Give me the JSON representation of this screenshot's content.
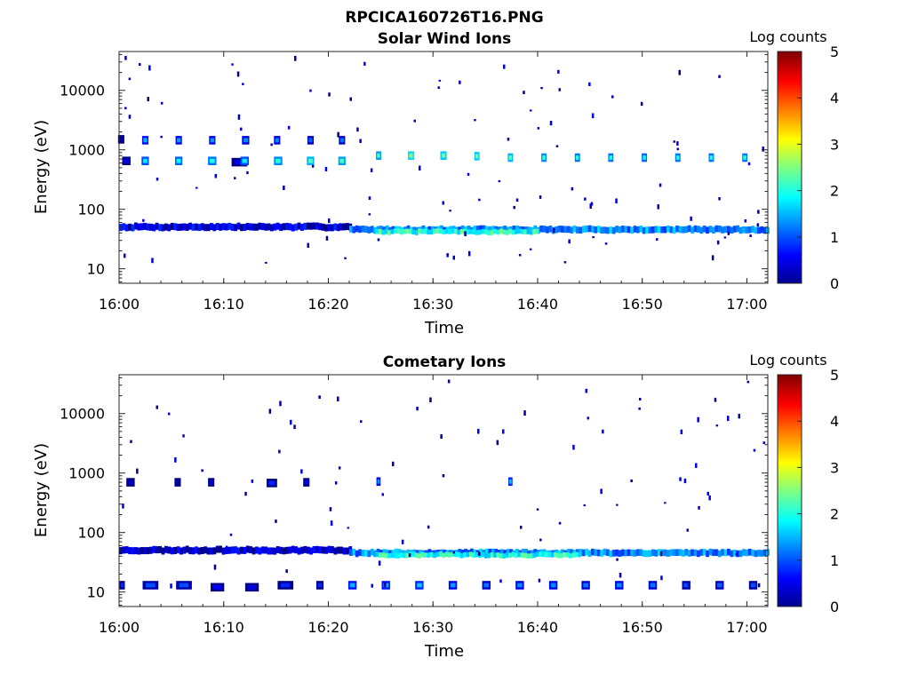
{
  "figure_title": "RPCICA160726T16.PNG",
  "colors": {
    "colormap": [
      "#00008f",
      "#0000ff",
      "#00ffff",
      "#ffff00",
      "#ff0000",
      "#800000"
    ],
    "axis": "#262626"
  },
  "chart_data": [
    {
      "type": "heatmap",
      "title": "Solar Wind Ions",
      "xlabel": "Time",
      "ylabel": "Energy (eV)",
      "x_ticks": [
        "16:00",
        "16:10",
        "16:20",
        "16:30",
        "16:40",
        "16:50",
        "17:00"
      ],
      "x_tick_minutes": [
        0,
        10,
        20,
        30,
        40,
        50,
        60
      ],
      "xlim_minutes": [
        0,
        62
      ],
      "y_ticks": [
        "10",
        "100",
        "1000",
        "10000"
      ],
      "y_tick_values": [
        10,
        100,
        1000,
        10000
      ],
      "ylim": [
        5.7,
        45000
      ],
      "y_scale": "log",
      "colorbar": {
        "label": "Log counts",
        "ticks": [
          "0",
          "1",
          "2",
          "3",
          "4",
          "5"
        ],
        "range": [
          0,
          5
        ]
      },
      "bands": [
        {
          "t0": 0.0,
          "t1": 22.0,
          "e0": 44,
          "e1": 58,
          "level": 0.4
        },
        {
          "t0": 22.0,
          "t1": 62.0,
          "e0": 40,
          "e1": 52,
          "level": 1.3
        },
        {
          "t0": 24.5,
          "t1": 40.0,
          "e0": 38,
          "e1": 46,
          "level": 2.0
        }
      ],
      "blobs": [
        {
          "t": 0.2,
          "e": 1500,
          "w": 0.6,
          "level": 0.3
        },
        {
          "t": 0.7,
          "e": 650,
          "w": 0.8,
          "level": 0.5
        },
        {
          "t": 2.5,
          "e": 650,
          "w": 0.7,
          "level": 1.8
        },
        {
          "t": 2.5,
          "e": 1450,
          "w": 0.6,
          "level": 1.5
        },
        {
          "t": 5.7,
          "e": 650,
          "w": 0.7,
          "level": 1.9
        },
        {
          "t": 5.7,
          "e": 1450,
          "w": 0.6,
          "level": 1.4
        },
        {
          "t": 8.9,
          "e": 650,
          "w": 0.8,
          "level": 2.0
        },
        {
          "t": 8.9,
          "e": 1450,
          "w": 0.6,
          "level": 1.4
        },
        {
          "t": 11.5,
          "e": 620,
          "w": 1.5,
          "level": 0.5
        },
        {
          "t": 12.0,
          "e": 650,
          "w": 0.8,
          "level": 1.8
        },
        {
          "t": 12.1,
          "e": 1450,
          "w": 0.7,
          "level": 1.3
        },
        {
          "t": 15.2,
          "e": 650,
          "w": 0.8,
          "level": 2.1
        },
        {
          "t": 15.1,
          "e": 1450,
          "w": 0.6,
          "level": 1.3
        },
        {
          "t": 18.3,
          "e": 650,
          "w": 0.7,
          "level": 2.3
        },
        {
          "t": 18.3,
          "e": 1450,
          "w": 0.6,
          "level": 1.1
        },
        {
          "t": 21.3,
          "e": 650,
          "w": 0.7,
          "level": 2.2
        },
        {
          "t": 21.3,
          "e": 1450,
          "w": 0.6,
          "level": 1.2
        },
        {
          "t": 24.8,
          "e": 800,
          "w": 0.5,
          "level": 2.2
        },
        {
          "t": 27.9,
          "e": 800,
          "w": 0.6,
          "level": 2.5
        },
        {
          "t": 31.0,
          "e": 800,
          "w": 0.6,
          "level": 2.4
        },
        {
          "t": 34.2,
          "e": 780,
          "w": 0.5,
          "level": 2.4
        },
        {
          "t": 37.4,
          "e": 740,
          "w": 0.5,
          "level": 2.3
        },
        {
          "t": 40.6,
          "e": 740,
          "w": 0.5,
          "level": 2.1
        },
        {
          "t": 43.8,
          "e": 740,
          "w": 0.5,
          "level": 2.0
        },
        {
          "t": 47.0,
          "e": 740,
          "w": 0.5,
          "level": 2.0
        },
        {
          "t": 50.2,
          "e": 740,
          "w": 0.5,
          "level": 1.9
        },
        {
          "t": 53.4,
          "e": 740,
          "w": 0.5,
          "level": 2.0
        },
        {
          "t": 56.6,
          "e": 740,
          "w": 0.5,
          "level": 2.0
        },
        {
          "t": 59.8,
          "e": 740,
          "w": 0.5,
          "level": 2.0
        }
      ],
      "scatter_seed": 7,
      "scatter_count": 110
    },
    {
      "type": "heatmap",
      "title": "Cometary Ions",
      "xlabel": "Time",
      "ylabel": "Energy (eV)",
      "x_ticks": [
        "16:00",
        "16:10",
        "16:20",
        "16:30",
        "16:40",
        "16:50",
        "17:00"
      ],
      "x_tick_minutes": [
        0,
        10,
        20,
        30,
        40,
        50,
        60
      ],
      "xlim_minutes": [
        0,
        62
      ],
      "y_ticks": [
        "10",
        "100",
        "1000",
        "10000"
      ],
      "y_tick_values": [
        10,
        100,
        1000,
        10000
      ],
      "ylim": [
        5.7,
        45000
      ],
      "y_scale": "log",
      "colorbar": {
        "label": "Log counts",
        "ticks": [
          "0",
          "1",
          "2",
          "3",
          "4",
          "5"
        ],
        "range": [
          0,
          5
        ]
      },
      "bands": [
        {
          "t0": 0.0,
          "t1": 22.0,
          "e0": 44,
          "e1": 58,
          "level": 0.3
        },
        {
          "t0": 22.0,
          "t1": 62.0,
          "e0": 40,
          "e1": 52,
          "level": 1.3
        },
        {
          "t0": 24.5,
          "t1": 44.0,
          "e0": 38,
          "e1": 46,
          "level": 2.0
        }
      ],
      "blobs": [
        {
          "t": 0.3,
          "e": 13,
          "w": 0.5,
          "level": 0.8
        },
        {
          "t": 3.0,
          "e": 13,
          "w": 1.5,
          "level": 1.0
        },
        {
          "t": 6.2,
          "e": 13,
          "w": 1.5,
          "level": 1.0
        },
        {
          "t": 9.4,
          "e": 12,
          "w": 1.3,
          "level": 0.6
        },
        {
          "t": 12.7,
          "e": 12,
          "w": 1.3,
          "level": 0.5
        },
        {
          "t": 15.9,
          "e": 13,
          "w": 1.5,
          "level": 0.8
        },
        {
          "t": 19.2,
          "e": 13,
          "w": 0.7,
          "level": 0.8
        },
        {
          "t": 22.3,
          "e": 13,
          "w": 0.8,
          "level": 1.5
        },
        {
          "t": 25.5,
          "e": 13,
          "w": 0.8,
          "level": 1.5
        },
        {
          "t": 28.7,
          "e": 13,
          "w": 0.8,
          "level": 1.6
        },
        {
          "t": 31.9,
          "e": 13,
          "w": 0.8,
          "level": 1.4
        },
        {
          "t": 35.1,
          "e": 13,
          "w": 0.8,
          "level": 1.2
        },
        {
          "t": 38.3,
          "e": 13,
          "w": 0.8,
          "level": 1.3
        },
        {
          "t": 41.5,
          "e": 13,
          "w": 0.8,
          "level": 1.3
        },
        {
          "t": 44.6,
          "e": 13,
          "w": 0.8,
          "level": 1.2
        },
        {
          "t": 47.8,
          "e": 13,
          "w": 0.8,
          "level": 1.3
        },
        {
          "t": 51.0,
          "e": 13,
          "w": 0.8,
          "level": 1.2
        },
        {
          "t": 54.2,
          "e": 13,
          "w": 0.8,
          "level": 1.0
        },
        {
          "t": 57.4,
          "e": 13,
          "w": 0.8,
          "level": 1.1
        },
        {
          "t": 60.6,
          "e": 13,
          "w": 0.8,
          "level": 1.0
        },
        {
          "t": 1.1,
          "e": 700,
          "w": 0.8,
          "level": 0.3
        },
        {
          "t": 5.6,
          "e": 700,
          "w": 0.6,
          "level": 0.2
        },
        {
          "t": 8.8,
          "e": 700,
          "w": 0.6,
          "level": 0.4
        },
        {
          "t": 14.6,
          "e": 680,
          "w": 1.0,
          "level": 0.8
        },
        {
          "t": 17.9,
          "e": 700,
          "w": 0.6,
          "level": 0.6
        },
        {
          "t": 24.8,
          "e": 720,
          "w": 0.4,
          "level": 1.4
        },
        {
          "t": 37.4,
          "e": 720,
          "w": 0.4,
          "level": 1.6
        }
      ],
      "scatter_seed": 23,
      "scatter_count": 90
    }
  ]
}
